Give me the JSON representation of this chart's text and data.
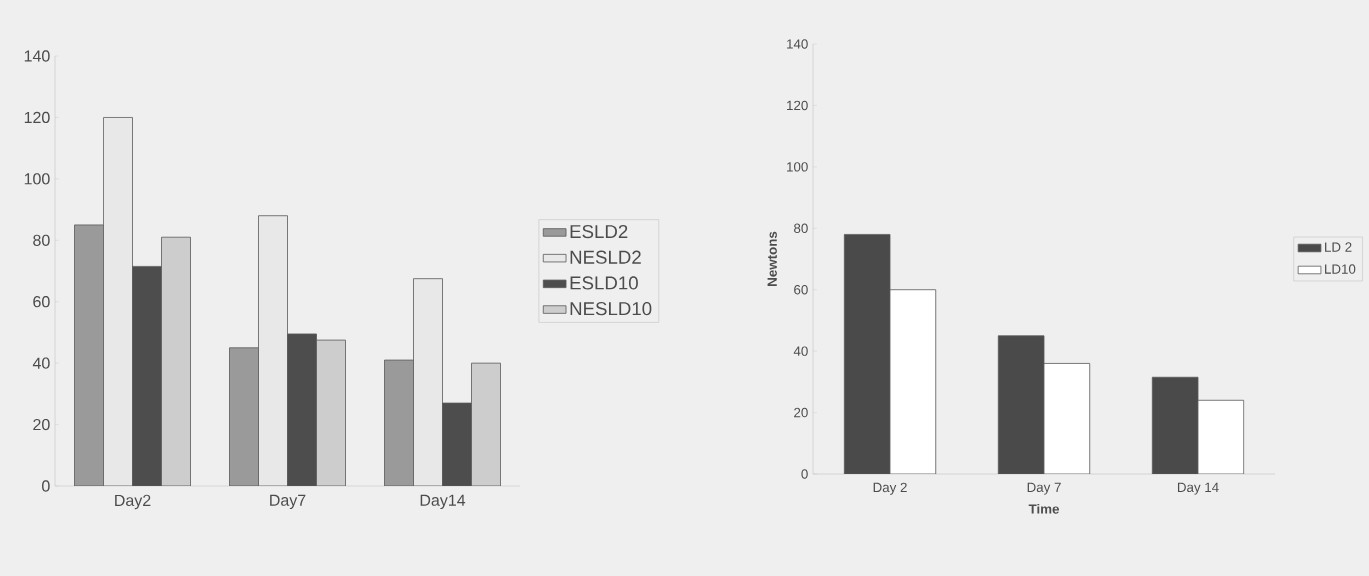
{
  "chart_data": [
    {
      "type": "bar",
      "categories": [
        "Day2",
        "Day7",
        "Day14"
      ],
      "series": [
        {
          "name": "ESLD2",
          "color": "#9a9a9a",
          "values": [
            85,
            45,
            41
          ]
        },
        {
          "name": "NESLD2",
          "color": "#e8e8e8",
          "values": [
            120,
            88,
            67.5
          ]
        },
        {
          "name": "ESLD10",
          "color": "#4d4d4d",
          "values": [
            71.5,
            49.5,
            27
          ]
        },
        {
          "name": "NESLD10",
          "color": "#cdcdcd",
          "values": [
            81,
            47.5,
            40
          ]
        }
      ],
      "ylim": [
        0,
        140
      ],
      "yticks": [
        0,
        20,
        40,
        60,
        80,
        100,
        120,
        140
      ],
      "legend": "right",
      "grid": false
    },
    {
      "type": "bar",
      "categories": [
        "Day 2",
        "Day 7",
        "Day 14"
      ],
      "xlabel": "Time",
      "ylabel": "Newtons",
      "series": [
        {
          "name": "LD 2",
          "color": "#4a4a4a",
          "values": [
            78,
            45,
            31.5
          ]
        },
        {
          "name": "LD10",
          "color": "#ffffff",
          "values": [
            60,
            36,
            24
          ]
        }
      ],
      "ylim": [
        0,
        140
      ],
      "yticks": [
        0,
        20,
        40,
        60,
        80,
        100,
        120,
        140
      ],
      "legend": "right",
      "grid": false
    }
  ]
}
